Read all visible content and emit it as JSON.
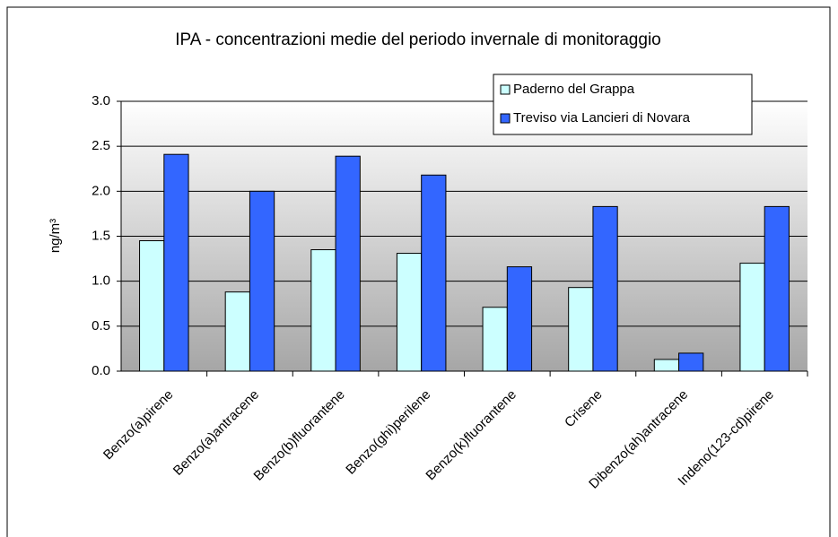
{
  "chart_data": {
    "type": "bar",
    "title": "IPA - concentrazioni medie del periodo invernale di monitoraggio",
    "y_label": "ng/m³",
    "categories": [
      "Benzo(a)pirene",
      "Benzo(a)antracene",
      "Benzo(b)fluorantene",
      "Benzo(ghi)perilene",
      "Benzo(k)fluorantene",
      "Crisene",
      "Dibenzo(ah)antracene",
      "Indeno(123-cd)pirene"
    ],
    "series": [
      {
        "name": "Paderno del Grappa",
        "color": "#ccffff",
        "values": [
          1.45,
          0.88,
          1.35,
          1.31,
          0.71,
          0.93,
          0.13,
          1.2
        ]
      },
      {
        "name": "Treviso via Lancieri di Novara",
        "color": "#3366ff",
        "values": [
          2.41,
          2.0,
          2.39,
          2.18,
          1.16,
          1.83,
          0.2,
          1.83
        ]
      }
    ],
    "ylim": [
      0,
      3
    ],
    "yticks": [
      {
        "value": 0,
        "label": "0.0"
      },
      {
        "value": 0.5,
        "label": "0.5"
      },
      {
        "value": 1,
        "label": "1.0"
      },
      {
        "value": 1.5,
        "label": "1.5"
      },
      {
        "value": 2,
        "label": "2.0"
      },
      {
        "value": 2.5,
        "label": "2.5"
      },
      {
        "value": 3,
        "label": "3.0"
      }
    ],
    "grid": true,
    "legend": "top-right"
  }
}
